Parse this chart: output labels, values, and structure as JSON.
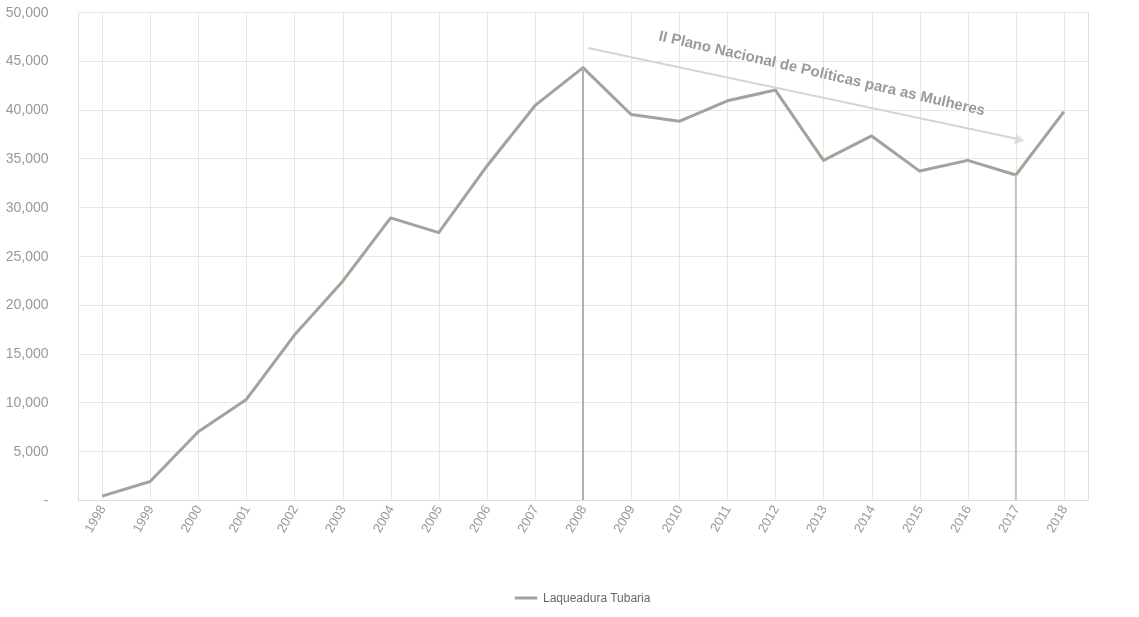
{
  "chart_data": {
    "type": "line",
    "categories": [
      "1998",
      "1999",
      "2000",
      "2001",
      "2002",
      "2003",
      "2004",
      "2005",
      "2006",
      "2007",
      "2008",
      "2009",
      "2010",
      "2011",
      "2012",
      "2013",
      "2014",
      "2015",
      "2016",
      "2017",
      "2018"
    ],
    "series": [
      {
        "name": "Laqueadura Tubaria",
        "color": "#a3a39a",
        "values": [
          400,
          1900,
          7000,
          10300,
          16900,
          22400,
          28900,
          27400,
          34200,
          40400,
          44300,
          39500,
          38800,
          40900,
          42000,
          34800,
          37300,
          33700,
          34800,
          33300,
          39800
        ]
      }
    ],
    "ylim": [
      0,
      50000
    ],
    "yticks": [
      {
        "value": 0,
        "label": "-"
      },
      {
        "value": 5000,
        "label": "5,000"
      },
      {
        "value": 10000,
        "label": "10,000"
      },
      {
        "value": 15000,
        "label": "15,000"
      },
      {
        "value": 20000,
        "label": "20,000"
      },
      {
        "value": 25000,
        "label": "25,000"
      },
      {
        "value": 30000,
        "label": "30,000"
      },
      {
        "value": 35000,
        "label": "35,000"
      },
      {
        "value": 40000,
        "label": "40,000"
      },
      {
        "value": 45000,
        "label": "45,000"
      },
      {
        "value": 50000,
        "label": "50,000"
      }
    ],
    "grid": true,
    "legend": "bottom",
    "marker": "none",
    "line_style": "solid",
    "ref_lines": [
      {
        "axis": "x",
        "value": "2008",
        "color": "#b0b0b0"
      },
      {
        "axis": "x",
        "value": "2017",
        "color": "#c4c4c4"
      }
    ],
    "annotations": [
      "II Plano Nacional de Políticas para as Mulheres"
    ]
  }
}
